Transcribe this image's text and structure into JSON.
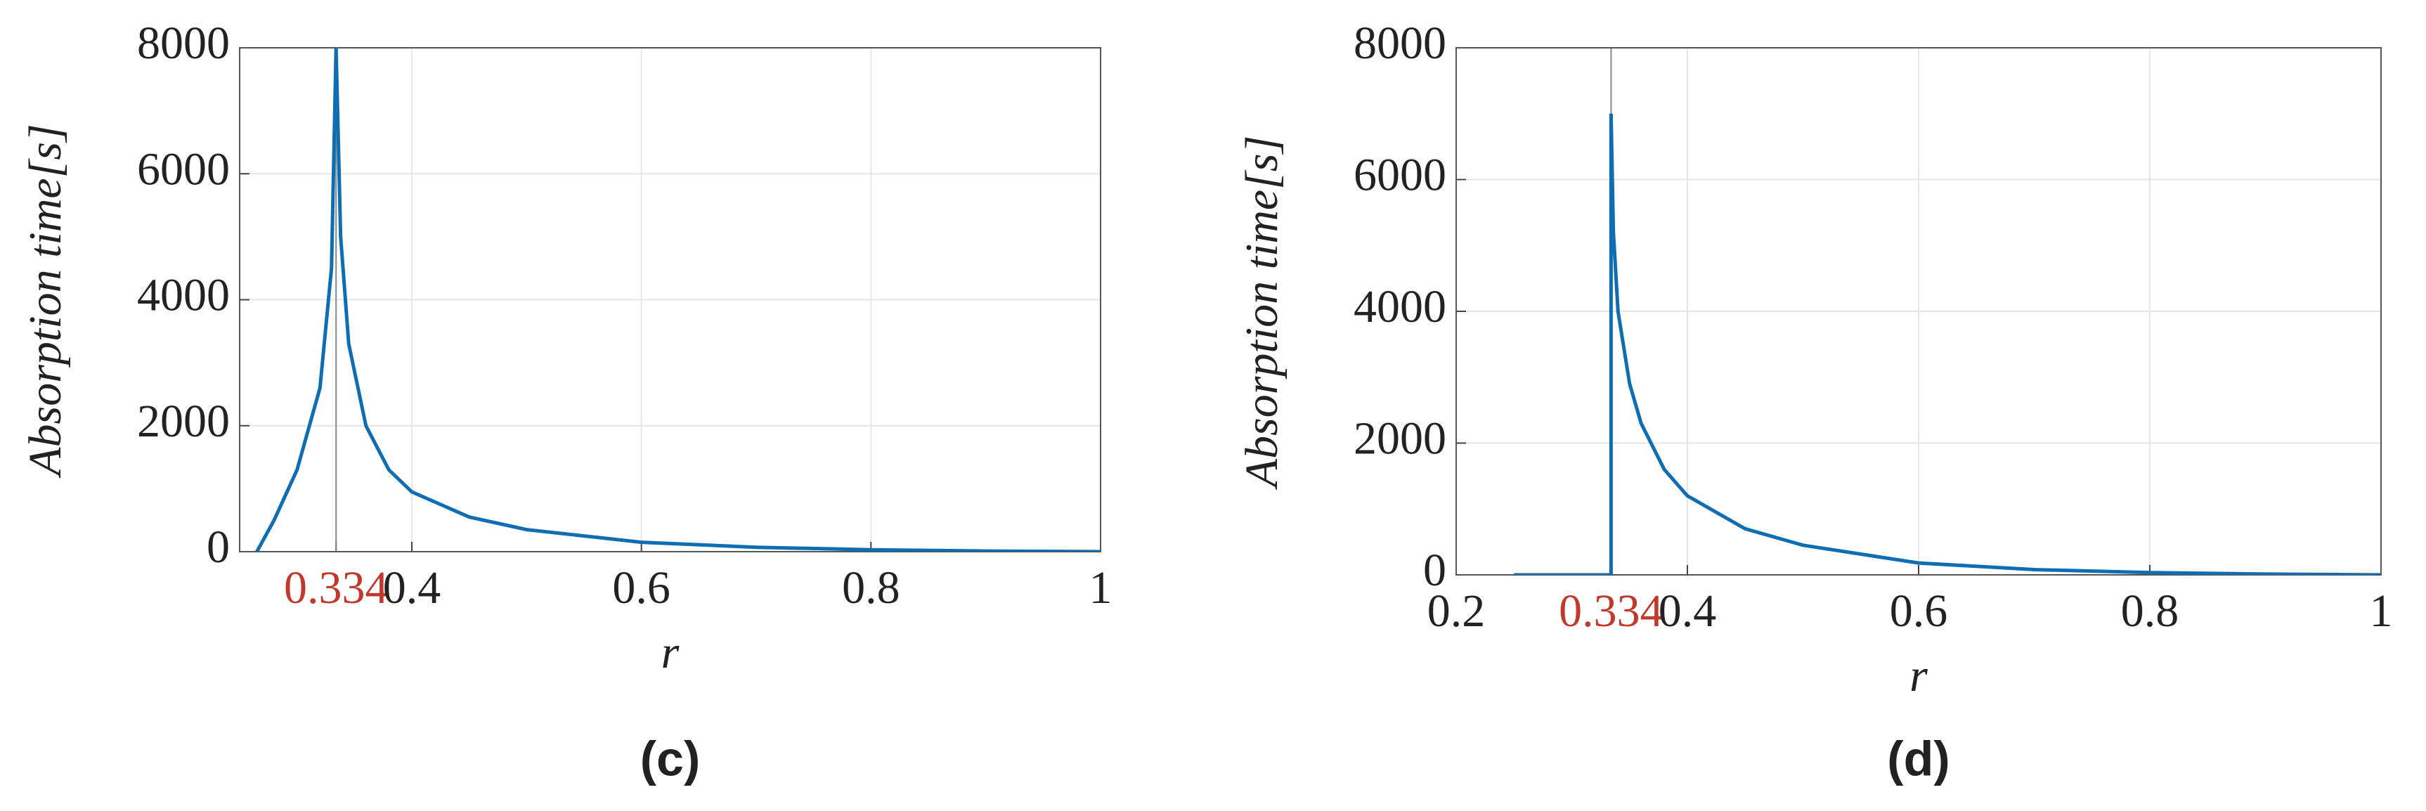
{
  "chart_data": [
    {
      "type": "line",
      "caption": "(c)",
      "xlabel": "r",
      "ylabel": "Absorption time[s]",
      "xlim": [
        0.25,
        1
      ],
      "xticks": [
        0.334,
        0.4,
        0.6,
        0.8,
        1
      ],
      "ylim": [
        0,
        8000
      ],
      "yticks": [
        0,
        2000,
        4000,
        6000,
        8000
      ],
      "highlight_x": 0.334,
      "highlight_color": "#c0392b",
      "grid": true,
      "x": [
        0.265,
        0.28,
        0.3,
        0.32,
        0.33,
        0.334,
        0.338,
        0.345,
        0.36,
        0.38,
        0.4,
        0.45,
        0.5,
        0.6,
        0.7,
        0.8,
        0.9,
        1
      ],
      "series": [
        {
          "color": "#0f6db3",
          "values": [
            0,
            500,
            1300,
            2600,
            4500,
            8000,
            5000,
            3300,
            2000,
            1300,
            950,
            550,
            350,
            150,
            70,
            30,
            10,
            0
          ]
        }
      ]
    },
    {
      "type": "line",
      "caption": "(d)",
      "xlabel": "r",
      "ylabel": "Absorption time[s]",
      "xlim": [
        0.2,
        1
      ],
      "xticks": [
        0.2,
        0.334,
        0.4,
        0.6,
        0.8,
        1
      ],
      "ylim": [
        0,
        8000
      ],
      "yticks": [
        0,
        2000,
        4000,
        6000,
        8000
      ],
      "highlight_x": 0.334,
      "highlight_color": "#c0392b",
      "grid": true,
      "x": [
        0.25,
        0.334,
        0.334,
        0.336,
        0.34,
        0.35,
        0.36,
        0.38,
        0.4,
        0.45,
        0.5,
        0.6,
        0.7,
        0.8,
        0.9,
        1
      ],
      "series": [
        {
          "color": "#0f6db3",
          "values": [
            0,
            0,
            7000,
            5200,
            4000,
            2900,
            2300,
            1600,
            1200,
            700,
            450,
            180,
            80,
            35,
            12,
            0
          ]
        }
      ]
    }
  ]
}
